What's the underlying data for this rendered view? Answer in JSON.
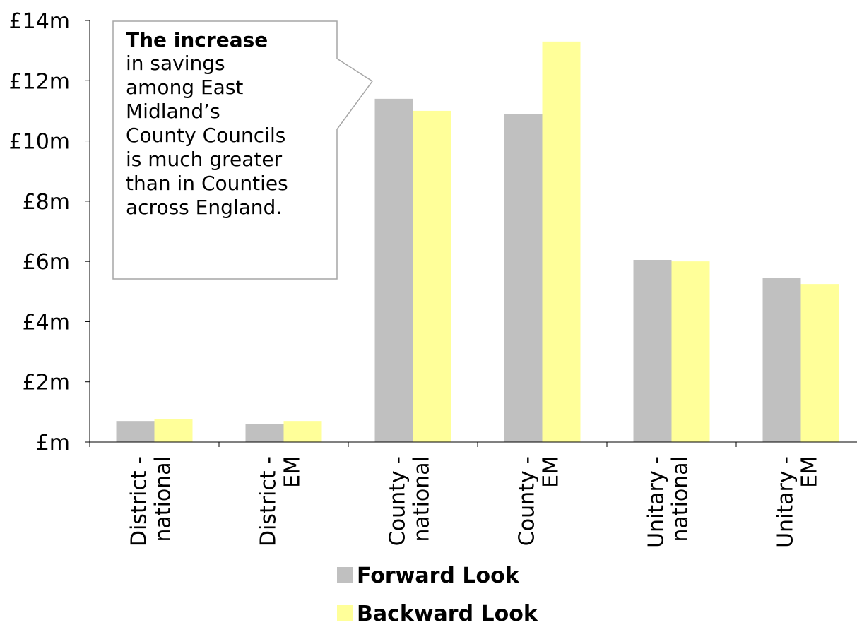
{
  "chart_data": {
    "type": "bar",
    "categories": [
      [
        "District -",
        "national"
      ],
      [
        "District -",
        "EM"
      ],
      [
        "County -",
        "national"
      ],
      [
        "County -",
        "EM"
      ],
      [
        "Unitary -",
        "national"
      ],
      [
        "Unitary -",
        "EM"
      ]
    ],
    "series": [
      {
        "name": "Forward Look",
        "color": "#c0c0c0",
        "values": [
          0.7,
          0.6,
          11.4,
          10.9,
          6.05,
          5.45
        ]
      },
      {
        "name": "Backward Look",
        "color": "#ffff99",
        "values": [
          0.75,
          0.7,
          11.0,
          13.3,
          6.0,
          5.25
        ]
      }
    ],
    "ylim": [
      0,
      14
    ],
    "yticks": [
      {
        "value": 0,
        "label": "£m"
      },
      {
        "value": 2,
        "label": "£2m"
      },
      {
        "value": 4,
        "label": "£4m"
      },
      {
        "value": 6,
        "label": "£6m"
      },
      {
        "value": 8,
        "label": "£8m"
      },
      {
        "value": 10,
        "label": "£10m"
      },
      {
        "value": 12,
        "label": "£12m"
      },
      {
        "value": 14,
        "label": "£14m"
      }
    ],
    "grid": false,
    "legend_position": "bottom",
    "annotation": {
      "bold": "The increase",
      "lines": [
        "in savings",
        "among East",
        "Midland’s",
        "County Councils",
        "is much greater",
        "than in Counties",
        "across England."
      ]
    }
  }
}
